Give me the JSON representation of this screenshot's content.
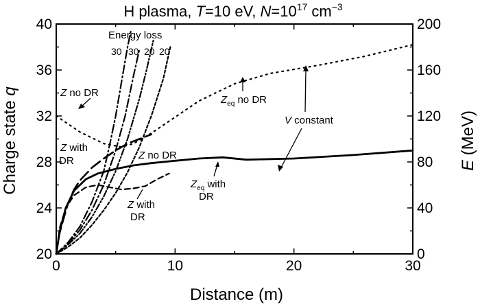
{
  "chart_data": {
    "type": "line",
    "title": "H plasma, T=10 eV, N=10^17 cm^-3",
    "title_parts": {
      "prefix": "H plasma, ",
      "T_symbol": "T",
      "T_value": "=10 eV, ",
      "N_symbol": "N",
      "N_value": "=10",
      "N_exp": "17",
      "unit": " cm",
      "unit_exp": "−3"
    },
    "xlabel": "Distance (m)",
    "ylabel_left": "Charge state ",
    "ylabel_left_symbol": "q",
    "ylabel_right_symbol": "E",
    "ylabel_right": " (MeV)",
    "xlim": [
      0,
      30
    ],
    "ylim_left": [
      20,
      40
    ],
    "ylim_right": [
      0,
      200
    ],
    "xticks": [
      0,
      10,
      20,
      30
    ],
    "yticks_left": [
      20,
      24,
      28,
      32,
      36,
      40
    ],
    "yticks_right": [
      0,
      40,
      80,
      120,
      160,
      200
    ],
    "grid": false,
    "series": [
      {
        "name": "Z no DR",
        "style": "long-dash",
        "axis": "left",
        "x": [
          0,
          0.2,
          0.6,
          1.0,
          1.5,
          2.0,
          3.0,
          4.0,
          5.0,
          6.0,
          7.0,
          8.0
        ],
        "y": [
          20,
          21.5,
          23.0,
          24.4,
          25.6,
          26.4,
          27.5,
          28.3,
          29.0,
          29.6,
          30.0,
          30.4
        ]
      },
      {
        "name": "Z with DR",
        "style": "dashed",
        "axis": "left",
        "x": [
          0,
          0.3,
          0.8,
          1.5,
          2.5,
          3.5,
          4.5,
          5.5,
          6.5,
          7.5,
          8.5,
          9.5
        ],
        "y": [
          20,
          22.3,
          24.0,
          25.1,
          25.8,
          26.0,
          25.8,
          25.6,
          25.7,
          25.9,
          26.5,
          27.0
        ]
      },
      {
        "name": "Zeq no DR",
        "style": "dotted",
        "axis": "left",
        "x": [
          0,
          2,
          4,
          5.5,
          6.5,
          8,
          10,
          12,
          15,
          18,
          22,
          26,
          30
        ],
        "y": [
          32,
          30.6,
          29.6,
          29.3,
          29.6,
          30.5,
          31.9,
          33.3,
          34.8,
          35.7,
          36.4,
          37.2,
          38.2
        ]
      },
      {
        "name": "Zeq with DR",
        "style": "solid",
        "axis": "left",
        "x": [
          0,
          0.3,
          0.8,
          1.5,
          2.5,
          3.5,
          5,
          6.5,
          8,
          10,
          12,
          14,
          16,
          20,
          25,
          30
        ],
        "y": [
          20,
          22.0,
          24.0,
          25.5,
          26.5,
          27.0,
          27.4,
          27.7,
          27.9,
          28.1,
          28.3,
          28.4,
          28.2,
          28.3,
          28.6,
          29.0
        ]
      },
      {
        "name": "Energy loss 30 (Z no DR)",
        "style": "dash-dot",
        "axis": "right",
        "x": [
          0,
          1,
          2,
          3,
          4,
          4.5,
          5,
          5.5,
          6,
          6.3
        ],
        "y": [
          0,
          10,
          24,
          45,
          72,
          95,
          120,
          150,
          180,
          195
        ]
      },
      {
        "name": "Energy loss 30 (Z with DR)",
        "style": "dash-dot",
        "axis": "right",
        "x": [
          0,
          1,
          2,
          3,
          4,
          5,
          5.8,
          6.5,
          7.0
        ],
        "y": [
          0,
          9,
          21,
          38,
          60,
          90,
          120,
          155,
          178
        ]
      },
      {
        "name": "Energy loss 20 (Z with DR)",
        "style": "dash-dot-dot",
        "axis": "right",
        "x": [
          0,
          1,
          2,
          3,
          4,
          5,
          6,
          7,
          7.6,
          8.2
        ],
        "y": [
          0,
          8,
          18,
          32,
          50,
          72,
          100,
          135,
          160,
          187
        ]
      },
      {
        "name": "Energy loss 20 (Zeq)",
        "style": "short-dash",
        "axis": "right",
        "x": [
          0,
          1,
          2,
          3,
          4,
          5,
          6,
          7,
          8,
          9,
          9.6
        ],
        "y": [
          0,
          6,
          14,
          25,
          38,
          53,
          71,
          93,
          120,
          152,
          180
        ]
      },
      {
        "name": "V constant",
        "style": "dotted-fine",
        "axis": "right",
        "x": [
          0,
          30
        ],
        "y": [
          0,
          0
        ]
      }
    ],
    "annotations": {
      "energy_loss": "Energy loss",
      "energy_nums": [
        "30",
        "30",
        "20",
        "20"
      ],
      "z_no_dr_top_sym": "Z",
      "z_no_dr_top_txt": " no DR",
      "z_with_dr_top_sym": "Z",
      "z_with_dr_top_txt": " with",
      "dr_line": "DR",
      "z_no_dr_mid_sym": "Z",
      "z_no_dr_mid_txt": " no DR",
      "z_with_dr_bot_sym": "Z",
      "z_with_dr_bot_txt": " with",
      "dr_line2": "DR",
      "zeq_with_sym": "Z",
      "zeq_with_sub": "eq",
      "zeq_with_txt": " with",
      "dr_line3": "DR",
      "zeq_no_sym": "Z",
      "zeq_no_sub": "eq",
      "zeq_no_txt": " no DR",
      "v_const_sym": "V",
      "v_const_txt": " constant"
    }
  }
}
